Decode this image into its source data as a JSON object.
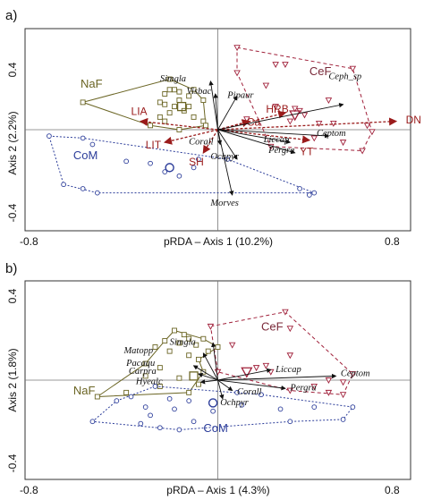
{
  "colors": {
    "naf": "#6b6524",
    "cef": "#a0203a",
    "com": "#2c3d9a",
    "env": "#9a1b1b",
    "species_arrow": "#111111",
    "zero_line": "#777777"
  },
  "chart_data": [
    {
      "type": "scatter",
      "panel": "a)",
      "xlabel": "pRDA – Axis 1 (10.2%)",
      "ylabel": "Axis 2 (2.2%)",
      "xlim": [
        -0.8,
        0.8
      ],
      "ylim": [
        -0.48,
        0.48
      ],
      "xtick_labels": [
        {
          "x": -0.8,
          "label": "-0.8"
        },
        {
          "x": 0.8,
          "label": "0.8"
        }
      ],
      "ytick_labels": [
        {
          "y": 0.4,
          "label": "0.4"
        },
        {
          "y": -0.4,
          "label": "-0.4"
        }
      ],
      "groups": [
        {
          "label": "NaF",
          "color": "naf",
          "marker": "square",
          "label_pos": [
            -0.57,
            0.2
          ],
          "centroid": [
            -0.15,
            0.11
          ],
          "points": [
            [
              -0.56,
              0.13
            ],
            [
              -0.2,
              0.24
            ],
            [
              -0.2,
              0.19
            ],
            [
              -0.18,
              0.19
            ],
            [
              -0.16,
              0.18
            ],
            [
              -0.22,
              0.17
            ],
            [
              -0.1,
              0.19
            ],
            [
              -0.12,
              0.16
            ],
            [
              -0.06,
              0.14
            ],
            [
              -0.16,
              0.14
            ],
            [
              -0.24,
              0.13
            ],
            [
              -0.22,
              0.12
            ],
            [
              -0.18,
              0.11
            ],
            [
              -0.12,
              0.11
            ],
            [
              -0.14,
              0.09
            ],
            [
              -0.2,
              0.08
            ],
            [
              -0.24,
              0.06
            ],
            [
              -0.1,
              0.06
            ],
            [
              -0.22,
              0.04
            ],
            [
              -0.06,
              0.04
            ],
            [
              -0.28,
              0.02
            ],
            [
              -0.16,
              0.0
            ],
            [
              -0.05,
              0.02
            ]
          ],
          "hull": [
            [
              -0.56,
              0.13
            ],
            [
              -0.2,
              0.24
            ],
            [
              -0.1,
              0.19
            ],
            [
              -0.06,
              0.14
            ],
            [
              -0.05,
              0.02
            ],
            [
              -0.16,
              0.0
            ],
            [
              -0.28,
              0.02
            ],
            [
              -0.56,
              0.13
            ]
          ],
          "hull_dash": "none"
        },
        {
          "label": "CeF",
          "color": "cef",
          "marker": "triangle",
          "label_pos": [
            0.38,
            0.26
          ],
          "centroid": [
            0.32,
            0.07
          ],
          "points": [
            [
              0.08,
              0.39
            ],
            [
              0.24,
              0.31
            ],
            [
              0.28,
              0.31
            ],
            [
              0.56,
              0.29
            ],
            [
              0.08,
              0.27
            ],
            [
              0.2,
              0.21
            ],
            [
              0.46,
              0.14
            ],
            [
              0.24,
              0.11
            ],
            [
              0.32,
              0.1
            ],
            [
              0.34,
              0.09
            ],
            [
              0.36,
              0.07
            ],
            [
              0.12,
              0.05
            ],
            [
              0.3,
              0.04
            ],
            [
              0.42,
              0.03
            ],
            [
              0.48,
              0.03
            ],
            [
              0.62,
              0.02
            ],
            [
              0.64,
              -0.01
            ],
            [
              0.4,
              -0.04
            ],
            [
              0.52,
              -0.06
            ],
            [
              0.22,
              -0.08
            ],
            [
              0.6,
              -0.1
            ]
          ],
          "hull": [
            [
              0.08,
              0.39
            ],
            [
              0.56,
              0.29
            ],
            [
              0.64,
              -0.01
            ],
            [
              0.6,
              -0.1
            ],
            [
              0.22,
              -0.08
            ],
            [
              0.08,
              0.27
            ],
            [
              0.08,
              0.39
            ]
          ],
          "hull_dash": "4,3"
        },
        {
          "label": "CoM",
          "color": "com",
          "marker": "circle",
          "label_pos": [
            -0.6,
            -0.14
          ],
          "centroid": [
            -0.2,
            -0.18
          ],
          "points": [
            [
              -0.7,
              -0.03
            ],
            [
              -0.56,
              -0.04
            ],
            [
              -0.52,
              -0.07
            ],
            [
              -0.38,
              -0.15
            ],
            [
              -0.08,
              -0.14
            ],
            [
              -0.28,
              -0.16
            ],
            [
              -0.22,
              -0.2
            ],
            [
              -0.1,
              -0.18
            ],
            [
              0.04,
              -0.14
            ],
            [
              -0.16,
              -0.22
            ],
            [
              -0.64,
              -0.26
            ],
            [
              -0.56,
              -0.28
            ],
            [
              -0.5,
              -0.3
            ],
            [
              0.34,
              -0.28
            ],
            [
              0.38,
              -0.31
            ],
            [
              0.4,
              -0.3
            ]
          ],
          "hull": [
            [
              -0.7,
              -0.03
            ],
            [
              -0.56,
              -0.04
            ],
            [
              0.04,
              -0.14
            ],
            [
              0.4,
              -0.3
            ],
            [
              -0.5,
              -0.3
            ],
            [
              -0.64,
              -0.26
            ],
            [
              -0.7,
              -0.03
            ]
          ],
          "hull_dash": "2,2"
        }
      ],
      "species_vectors": [
        {
          "name": "Simgla",
          "x": -0.03,
          "y": 0.23,
          "label_pos": [
            -0.24,
            0.23
          ]
        },
        {
          "name": "Visbac",
          "x": -0.01,
          "y": 0.17,
          "label_pos": [
            -0.13,
            0.17
          ]
        },
        {
          "name": "Pipaur",
          "x": 0.08,
          "y": 0.16,
          "label_pos": [
            0.04,
            0.15
          ]
        },
        {
          "name": "Ceph_sp",
          "x": 0.52,
          "y": 0.12,
          "label_pos": [
            0.46,
            0.24
          ]
        },
        {
          "name": "Ceptom",
          "x": 0.46,
          "y": -0.03,
          "label_pos": [
            0.41,
            -0.03
          ]
        },
        {
          "name": "Liccap",
          "x": 0.3,
          "y": -0.06,
          "label_pos": [
            0.19,
            -0.06
          ]
        },
        {
          "name": "Pergra",
          "x": 0.32,
          "y": -0.11,
          "label_pos": [
            0.21,
            -0.11
          ]
        },
        {
          "name": "Corall",
          "x": 0.01,
          "y": -0.07,
          "label_pos": [
            -0.12,
            -0.07
          ]
        },
        {
          "name": "Ochpyr",
          "x": 0.08,
          "y": -0.14,
          "label_pos": [
            -0.03,
            -0.14
          ]
        },
        {
          "name": "Morves",
          "x": 0.06,
          "y": -0.31,
          "label_pos": [
            -0.03,
            -0.36
          ]
        }
      ],
      "env_vectors": [
        {
          "name": "DN",
          "x": 0.74,
          "y": 0.04,
          "label_pos": [
            0.78,
            0.03
          ]
        },
        {
          "name": "HRB",
          "x": 0.28,
          "y": 0.08,
          "label_pos": [
            0.2,
            0.08
          ]
        },
        {
          "name": "Ca",
          "x": 0.13,
          "y": 0.04,
          "label_pos": [
            0.12,
            0.02
          ]
        },
        {
          "name": "YT",
          "x": 0.38,
          "y": -0.05,
          "label_pos": [
            0.34,
            -0.12
          ]
        },
        {
          "name": "LIA",
          "x": -0.32,
          "y": 0.04,
          "label_pos": [
            -0.36,
            0.07
          ]
        },
        {
          "name": "LIT",
          "x": -0.22,
          "y": -0.06,
          "label_pos": [
            -0.3,
            -0.09
          ]
        },
        {
          "name": "SH",
          "x": -0.06,
          "y": -0.11,
          "label_pos": [
            -0.12,
            -0.17
          ]
        }
      ]
    },
    {
      "type": "scatter",
      "panel": "b)",
      "xlabel": "pRDA – Axis 1 (4.3%)",
      "ylabel": "Axis 2 (1.8%)",
      "xlim": [
        -0.8,
        0.8
      ],
      "ylim": [
        -0.48,
        0.48
      ],
      "xtick_labels": [
        {
          "x": -0.8,
          "label": "-0.8"
        },
        {
          "x": 0.8,
          "label": "0.8"
        }
      ],
      "ytick_labels": [
        {
          "y": 0.4,
          "label": "0.4"
        },
        {
          "y": -0.4,
          "label": "-0.4"
        }
      ],
      "groups": [
        {
          "label": "NaF",
          "color": "naf",
          "marker": "square",
          "label_pos": [
            -0.6,
            -0.07
          ],
          "centroid": [
            -0.1,
            0.02
          ],
          "points": [
            [
              -0.18,
              0.24
            ],
            [
              -0.14,
              0.22
            ],
            [
              -0.12,
              0.2
            ],
            [
              -0.06,
              0.2
            ],
            [
              -0.22,
              0.19
            ],
            [
              -0.16,
              0.18
            ],
            [
              -0.09,
              0.17
            ],
            [
              0.0,
              0.16
            ],
            [
              -0.26,
              0.16
            ],
            [
              -0.04,
              0.14
            ],
            [
              -0.2,
              0.14
            ],
            [
              -0.12,
              0.12
            ],
            [
              -0.08,
              0.1
            ],
            [
              -0.3,
              0.08
            ],
            [
              -0.24,
              0.06
            ],
            [
              -0.06,
              0.04
            ],
            [
              -0.3,
              0.02
            ],
            [
              -0.16,
              0.01
            ],
            [
              -0.24,
              -0.03
            ],
            [
              -0.38,
              -0.06
            ],
            [
              -0.12,
              -0.06
            ],
            [
              -0.5,
              -0.08
            ],
            [
              -0.08,
              -0.02
            ]
          ],
          "hull": [
            [
              -0.18,
              0.24
            ],
            [
              -0.06,
              0.2
            ],
            [
              0.0,
              0.16
            ],
            [
              -0.08,
              0.1
            ],
            [
              -0.06,
              0.04
            ],
            [
              -0.12,
              -0.06
            ],
            [
              -0.5,
              -0.08
            ],
            [
              -0.3,
              0.08
            ],
            [
              -0.22,
              0.19
            ],
            [
              -0.18,
              0.24
            ]
          ],
          "hull_dash": "none"
        },
        {
          "label": "CeF",
          "color": "cef",
          "marker": "triangle",
          "label_pos": [
            0.18,
            0.24
          ],
          "centroid": [
            0.12,
            0.04
          ],
          "points": [
            [
              0.28,
              0.33
            ],
            [
              -0.03,
              0.26
            ],
            [
              0.3,
              0.25
            ],
            [
              0.06,
              0.17
            ],
            [
              0.3,
              0.12
            ],
            [
              0.16,
              0.06
            ],
            [
              0.2,
              0.07
            ],
            [
              0.22,
              0.04
            ],
            [
              0.0,
              0.04
            ],
            [
              0.46,
              0.0
            ],
            [
              0.52,
              -0.01
            ],
            [
              0.4,
              -0.03
            ],
            [
              0.3,
              -0.05
            ],
            [
              0.46,
              -0.06
            ],
            [
              0.52,
              -0.07
            ],
            [
              0.56,
              0.03
            ]
          ],
          "hull": [
            [
              -0.03,
              0.26
            ],
            [
              0.28,
              0.33
            ],
            [
              0.56,
              0.03
            ],
            [
              0.52,
              -0.07
            ],
            [
              0.3,
              -0.05
            ],
            [
              0.0,
              0.04
            ],
            [
              -0.03,
              0.26
            ]
          ],
          "hull_dash": "4,3"
        },
        {
          "label": "CoM",
          "color": "com",
          "marker": "circle",
          "label_pos": [
            -0.06,
            -0.25
          ],
          "centroid": [
            -0.02,
            -0.11
          ],
          "points": [
            [
              -0.26,
              -0.03
            ],
            [
              -0.36,
              -0.08
            ],
            [
              -0.2,
              -0.09
            ],
            [
              -0.42,
              -0.1
            ],
            [
              -0.12,
              -0.1
            ],
            [
              0.08,
              -0.06
            ],
            [
              0.18,
              -0.07
            ],
            [
              -0.3,
              -0.13
            ],
            [
              -0.18,
              -0.14
            ],
            [
              0.1,
              -0.12
            ],
            [
              -0.02,
              -0.15
            ],
            [
              0.26,
              -0.14
            ],
            [
              0.4,
              -0.13
            ],
            [
              0.56,
              -0.13
            ],
            [
              -0.28,
              -0.17
            ],
            [
              -0.52,
              -0.2
            ],
            [
              -0.32,
              -0.21
            ],
            [
              0.3,
              -0.2
            ],
            [
              0.52,
              -0.19
            ],
            [
              -0.1,
              -0.2
            ],
            [
              -0.24,
              -0.23
            ],
            [
              -0.16,
              -0.24
            ]
          ],
          "hull": [
            [
              -0.26,
              -0.03
            ],
            [
              0.18,
              -0.07
            ],
            [
              0.56,
              -0.13
            ],
            [
              0.52,
              -0.19
            ],
            [
              0.3,
              -0.2
            ],
            [
              -0.16,
              -0.24
            ],
            [
              -0.52,
              -0.2
            ],
            [
              -0.42,
              -0.1
            ],
            [
              -0.26,
              -0.03
            ]
          ],
          "hull_dash": "2,2"
        }
      ],
      "species_vectors": [
        {
          "name": "Simgla",
          "x": -0.02,
          "y": 0.18,
          "label_pos": [
            -0.2,
            0.17
          ]
        },
        {
          "name": "Matopp",
          "x": -0.06,
          "y": 0.13,
          "label_pos": [
            -0.39,
            0.13
          ]
        },
        {
          "name": "Pacaqu",
          "x": -0.1,
          "y": 0.07,
          "label_pos": [
            -0.38,
            0.07
          ]
        },
        {
          "name": "Carpra",
          "x": -0.08,
          "y": 0.03,
          "label_pos": [
            -0.37,
            0.03
          ]
        },
        {
          "name": "Hyealc",
          "x": -0.07,
          "y": -0.01,
          "label_pos": [
            -0.34,
            -0.02
          ]
        },
        {
          "name": "Liccap",
          "x": 0.22,
          "y": 0.05,
          "label_pos": [
            0.24,
            0.04
          ]
        },
        {
          "name": "Ceptom",
          "x": 0.49,
          "y": 0.02,
          "label_pos": [
            0.51,
            0.02
          ]
        },
        {
          "name": "Pergra",
          "x": 0.28,
          "y": -0.04,
          "label_pos": [
            0.3,
            -0.05
          ]
        },
        {
          "name": "Corall",
          "x": 0.06,
          "y": -0.05,
          "label_pos": [
            0.08,
            -0.07
          ]
        },
        {
          "name": "Ochpyr",
          "x": 0.02,
          "y": -0.09,
          "label_pos": [
            0.01,
            -0.12
          ]
        }
      ],
      "env_vectors": []
    }
  ]
}
